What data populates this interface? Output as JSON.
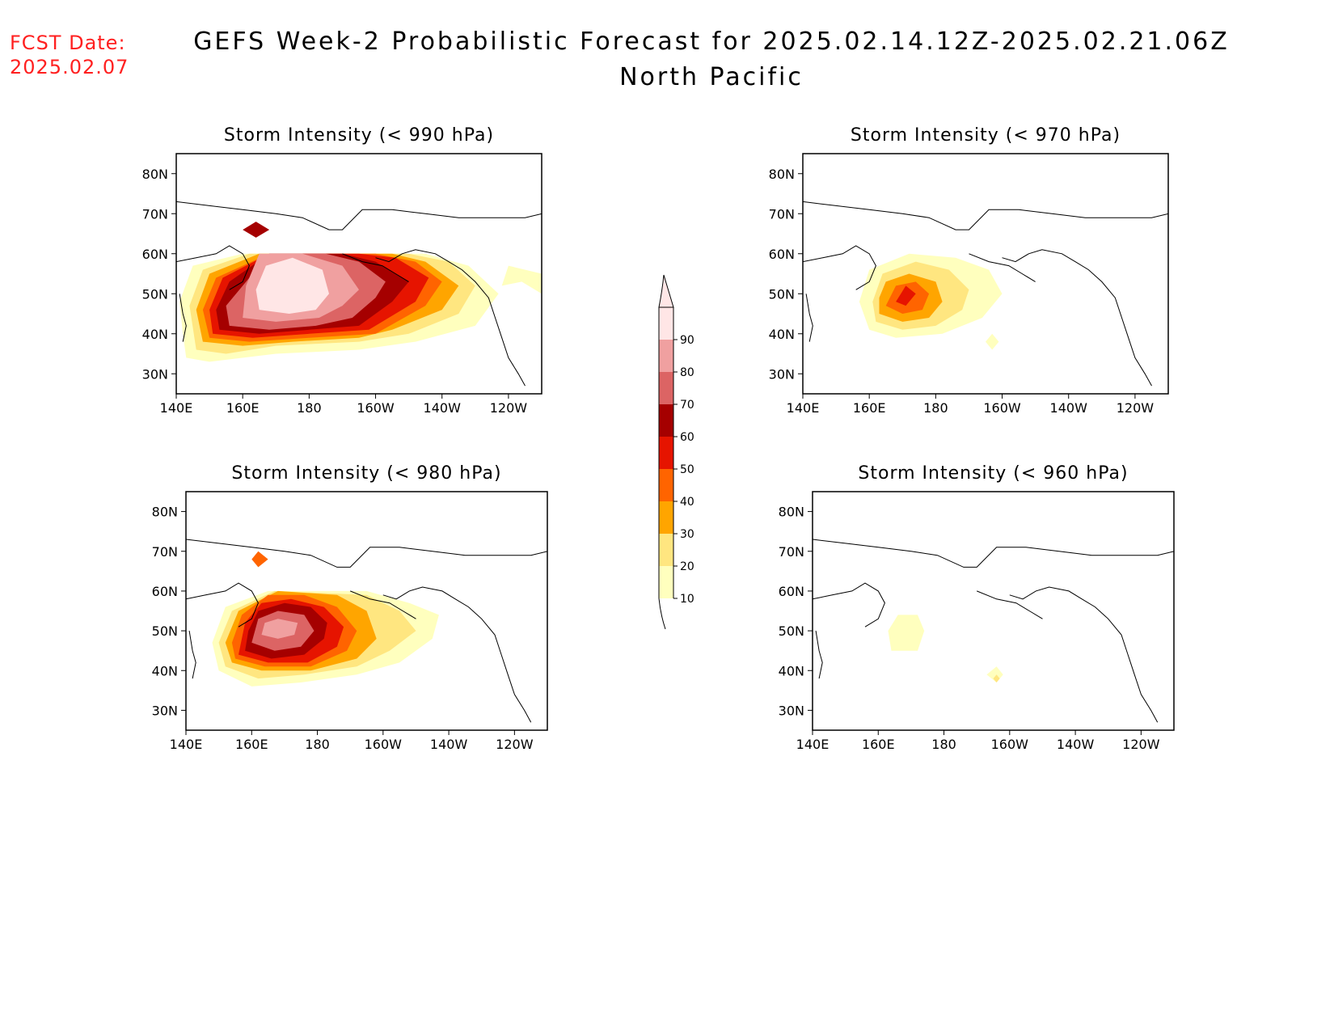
{
  "header": {
    "fcst_label": "FCST Date:",
    "fcst_date": "2025.02.07",
    "title": "GEFS Week-2 Probabilistic Forecast for 2025.02.14.12Z-2025.02.21.06Z",
    "subtitle": "North Pacific"
  },
  "colors": {
    "levels": [
      {
        "label": "10",
        "color": "#ffffbe"
      },
      {
        "label": "20",
        "color": "#ffe680"
      },
      {
        "label": "30",
        "color": "#ffa500"
      },
      {
        "label": "40",
        "color": "#ff6400"
      },
      {
        "label": "50",
        "color": "#e61400"
      },
      {
        "label": "60",
        "color": "#a50000"
      },
      {
        "label": "70",
        "color": "#dc6464"
      },
      {
        "label": "80",
        "color": "#f0a0a0"
      },
      {
        "label": "90",
        "color": "#ffe6e6"
      }
    ]
  },
  "colorbar": {
    "ticks": [
      "10",
      "20",
      "30",
      "40",
      "50",
      "60",
      "70",
      "80",
      "90"
    ]
  },
  "panels": [
    {
      "id": "p990",
      "title": "Storm Intensity (< 990 hPa)",
      "lat_ticks": [
        "80N",
        "70N",
        "60N",
        "50N",
        "40N",
        "30N"
      ],
      "lon_ticks": [
        "140E",
        "160E",
        "180",
        "160W",
        "140W",
        "120W"
      ]
    },
    {
      "id": "p970",
      "title": "Storm Intensity (< 970 hPa)",
      "lat_ticks": [
        "80N",
        "70N",
        "60N",
        "50N",
        "40N",
        "30N"
      ],
      "lon_ticks": [
        "140E",
        "160E",
        "180",
        "160W",
        "140W",
        "120W"
      ]
    },
    {
      "id": "p980",
      "title": "Storm Intensity (< 980 hPa)",
      "lat_ticks": [
        "80N",
        "70N",
        "60N",
        "50N",
        "40N",
        "30N"
      ],
      "lon_ticks": [
        "140E",
        "160E",
        "180",
        "160W",
        "140W",
        "120W"
      ]
    },
    {
      "id": "p960",
      "title": "Storm Intensity (< 960 hPa)",
      "lat_ticks": [
        "80N",
        "70N",
        "60N",
        "50N",
        "40N",
        "30N"
      ],
      "lon_ticks": [
        "140E",
        "160E",
        "180",
        "160W",
        "140W",
        "120W"
      ]
    }
  ]
}
